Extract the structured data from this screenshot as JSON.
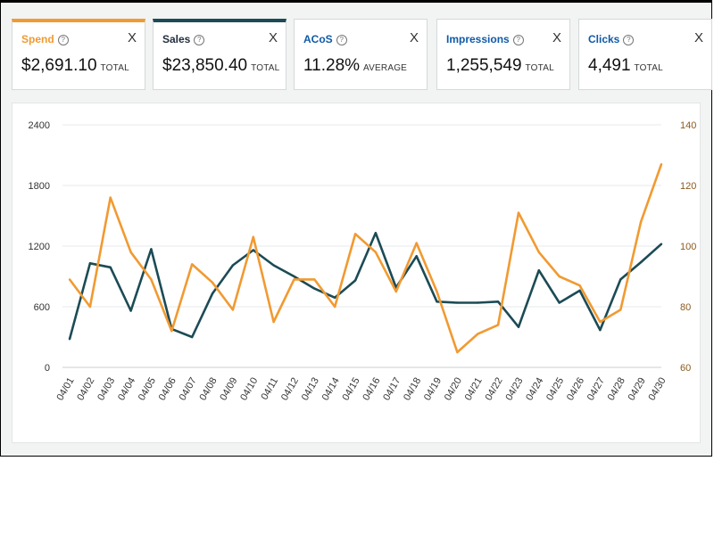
{
  "metrics": [
    {
      "label": "Spend",
      "value": "$2,691.10",
      "unit": "TOTAL",
      "color": "#f19a31",
      "border": "#f19a31",
      "active": true
    },
    {
      "label": "Sales",
      "value": "$23,850.40",
      "unit": "TOTAL",
      "color": "#232f3e",
      "border": "#1c4b55",
      "active": true
    },
    {
      "label": "ACoS",
      "value": "11.28%",
      "unit": "AVERAGE",
      "color": "#0f5aa8",
      "border": "#d5d9d9",
      "active": false
    },
    {
      "label": "Impressions",
      "value": "1,255,549",
      "unit": "TOTAL",
      "color": "#0f5aa8",
      "border": "#d5d9d9",
      "active": false
    },
    {
      "label": "Clicks",
      "value": "4,491",
      "unit": "TOTAL",
      "color": "#0f5aa8",
      "border": "#d5d9d9",
      "active": false
    }
  ],
  "help_icon": "?",
  "close_icon": "X",
  "chart_data": {
    "type": "line",
    "x": [
      "04/01",
      "04/02",
      "04/03",
      "04/04",
      "04/05",
      "04/06",
      "04/07",
      "04/08",
      "04/09",
      "04/10",
      "04/11",
      "04/12",
      "04/13",
      "04/14",
      "04/15",
      "04/16",
      "04/17",
      "04/18",
      "04/19",
      "04/20",
      "04/21",
      "04/22",
      "04/23",
      "04/24",
      "04/25",
      "04/26",
      "04/27",
      "04/28",
      "04/29",
      "04/30"
    ],
    "y_left": {
      "ticks": [
        "2400",
        "1800",
        "1200",
        "600",
        "0"
      ],
      "lim": [
        0,
        2400
      ]
    },
    "y_right": {
      "ticks": [
        "140",
        "120",
        "100",
        "80",
        "60"
      ],
      "lim": [
        60,
        140
      ]
    },
    "grid": true,
    "series": [
      {
        "key": "sales",
        "axis": "left",
        "color": "#1c4b55",
        "values": [
          280,
          1030,
          990,
          560,
          1170,
          380,
          300,
          730,
          1010,
          1160,
          1010,
          900,
          780,
          690,
          860,
          1330,
          790,
          1100,
          650,
          640,
          640,
          650,
          400,
          960,
          640,
          760,
          370,
          870,
          1040,
          1220
        ]
      },
      {
        "key": "spend",
        "axis": "right",
        "color": "#f19a31",
        "values": [
          89,
          80,
          116,
          98,
          89,
          72,
          94,
          88,
          79,
          103,
          75,
          89,
          89,
          80,
          104,
          98,
          85,
          101,
          85,
          65,
          71,
          74,
          111,
          98,
          90,
          87,
          75,
          79,
          108,
          127
        ]
      }
    ]
  }
}
